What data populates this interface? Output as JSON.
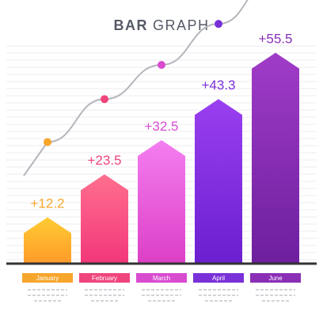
{
  "chart_data": {
    "type": "bar",
    "title_bold": "BAR",
    "title_rest": "GRAPH",
    "categories": [
      "January",
      "February",
      "March",
      "April",
      "June"
    ],
    "values": [
      12.2,
      23.5,
      32.5,
      43.3,
      55.5
    ],
    "value_labels": [
      "+12.2",
      "+23.5",
      "+32.5",
      "+43.3",
      "+55.5"
    ],
    "ylim": [
      0,
      60
    ],
    "grid": true,
    "trend_line": true,
    "colors": {
      "January": {
        "top": "#ffcc33",
        "bottom": "#ff9a2a",
        "label": "#f7a62c"
      },
      "February": {
        "top": "#ff6f8e",
        "bottom": "#f2377a",
        "label": "#f0447c"
      },
      "March": {
        "top": "#f47ef0",
        "bottom": "#dc3fc6",
        "label": "#d94cd0"
      },
      "April": {
        "top": "#9a3ff0",
        "bottom": "#6a1fd0",
        "label": "#7a30d8"
      },
      "June": {
        "top": "#a03cc8",
        "bottom": "#6d1f9e",
        "label": "#8a2eb6"
      },
      "trend_line": "#b5b5bc",
      "grid": "#ececf0",
      "baseline": "#333333"
    }
  }
}
